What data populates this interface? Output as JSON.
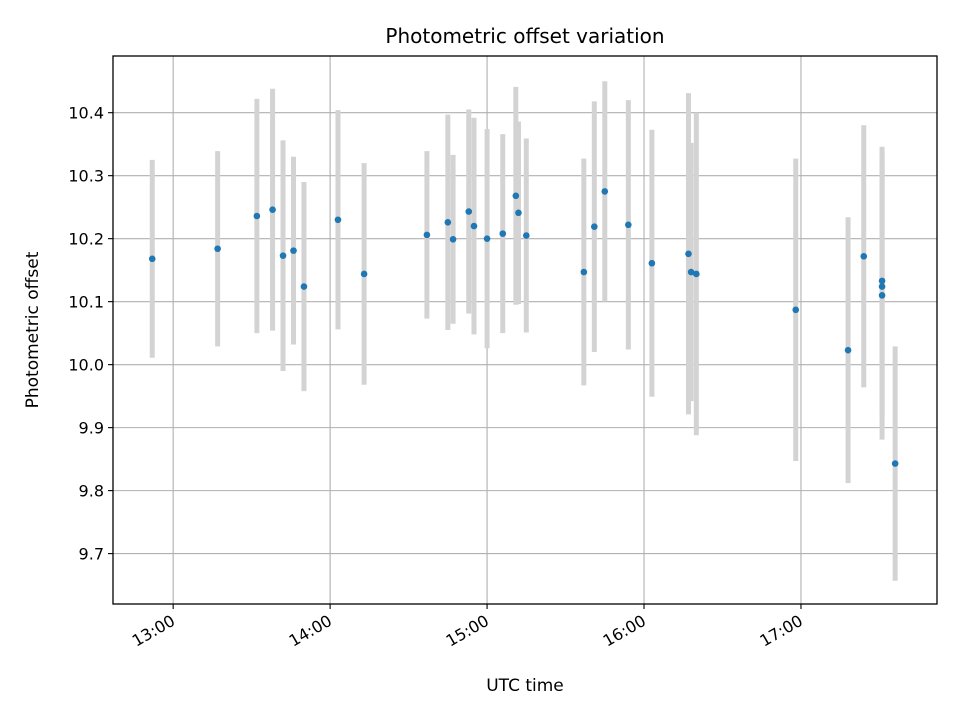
{
  "chart_data": {
    "type": "scatter",
    "title": "Photometric offset variation",
    "xlabel": "UTC time",
    "ylabel": "Photometric offset",
    "x_ticks": [
      "13:00",
      "14:00",
      "15:00",
      "16:00",
      "17:00"
    ],
    "y_ticks": [
      "9.7",
      "9.8",
      "9.9",
      "10.0",
      "10.1",
      "10.2",
      "10.3",
      "10.4"
    ],
    "xlim": [
      "12:37",
      "17:52"
    ],
    "ylim": [
      9.62,
      10.49
    ],
    "grid": true,
    "marker_color": "#1f77b4",
    "errorbar_color": "#d3d3d3",
    "points": [
      {
        "x": "12:52",
        "y": 10.168,
        "yerr": 0.157
      },
      {
        "x": "13:17",
        "y": 10.184,
        "yerr": 0.155
      },
      {
        "x": "13:32",
        "y": 10.236,
        "yerr": 0.186
      },
      {
        "x": "13:38",
        "y": 10.246,
        "yerr": 0.192
      },
      {
        "x": "13:42",
        "y": 10.173,
        "yerr": 0.183
      },
      {
        "x": "13:46",
        "y": 10.181,
        "yerr": 0.149
      },
      {
        "x": "13:50",
        "y": 10.124,
        "yerr": 0.166
      },
      {
        "x": "14:03",
        "y": 10.23,
        "yerr": 0.174
      },
      {
        "x": "14:13",
        "y": 10.144,
        "yerr": 0.176
      },
      {
        "x": "14:37",
        "y": 10.206,
        "yerr": 0.133
      },
      {
        "x": "14:45",
        "y": 10.226,
        "yerr": 0.171
      },
      {
        "x": "14:47",
        "y": 10.199,
        "yerr": 0.134
      },
      {
        "x": "14:53",
        "y": 10.243,
        "yerr": 0.162
      },
      {
        "x": "14:55",
        "y": 10.22,
        "yerr": 0.172
      },
      {
        "x": "15:00",
        "y": 10.2,
        "yerr": 0.174
      },
      {
        "x": "15:06",
        "y": 10.208,
        "yerr": 0.158
      },
      {
        "x": "15:11",
        "y": 10.268,
        "yerr": 0.173
      },
      {
        "x": "15:12",
        "y": 10.241,
        "yerr": 0.145
      },
      {
        "x": "15:15",
        "y": 10.205,
        "yerr": 0.154
      },
      {
        "x": "15:37",
        "y": 10.147,
        "yerr": 0.18
      },
      {
        "x": "15:41",
        "y": 10.219,
        "yerr": 0.199
      },
      {
        "x": "15:45",
        "y": 10.275,
        "yerr": 0.175
      },
      {
        "x": "15:54",
        "y": 10.222,
        "yerr": 0.198
      },
      {
        "x": "16:03",
        "y": 10.161,
        "yerr": 0.212
      },
      {
        "x": "16:17",
        "y": 10.176,
        "yerr": 0.255
      },
      {
        "x": "16:18",
        "y": 10.147,
        "yerr": 0.205
      },
      {
        "x": "16:20",
        "y": 10.144,
        "yerr": 0.256
      },
      {
        "x": "16:58",
        "y": 10.087,
        "yerr": 0.24
      },
      {
        "x": "17:18",
        "y": 10.023,
        "yerr": 0.211
      },
      {
        "x": "17:24",
        "y": 10.172,
        "yerr": 0.208
      },
      {
        "x": "17:31",
        "y": 10.133,
        "yerr": 0.213
      },
      {
        "x": "17:31",
        "y": 10.124,
        "yerr": 0.208
      },
      {
        "x": "17:31",
        "y": 10.11,
        "yerr": 0.229
      },
      {
        "x": "17:36",
        "y": 9.843,
        "yerr": 0.186
      }
    ]
  }
}
